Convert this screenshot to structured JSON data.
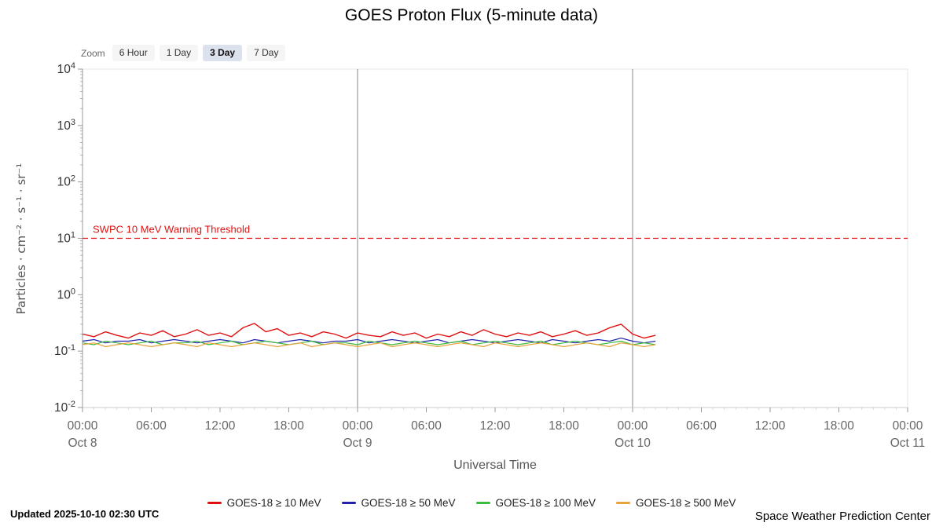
{
  "page": {
    "title": "GOES Proton Flux (5-minute data)",
    "updated": "Updated 2025-10-10 02:30 UTC",
    "credit": "Space Weather Prediction Center"
  },
  "zoom": {
    "label": "Zoom",
    "selected_index": 2,
    "buttons": [
      {
        "label": "6 Hour"
      },
      {
        "label": "1 Day"
      },
      {
        "label": "3 Day"
      },
      {
        "label": "7 Day"
      }
    ]
  },
  "chart_data": {
    "type": "line",
    "title": "GOES Proton Flux (5-minute data)",
    "xlabel": "Universal Time",
    "ylabel": "Particles · cm⁻² · s⁻¹ · sr⁻¹",
    "y_scale": "log",
    "ylim": [
      0.01,
      10000
    ],
    "y_tick_values": [
      10000,
      1000,
      100,
      10,
      1,
      0.1,
      0.01
    ],
    "y_tick_labels": [
      "10⁴",
      "10³",
      "10²",
      "10¹",
      "10⁰",
      "10⁻¹",
      "10⁻²"
    ],
    "x_unit": "hours since 2025-10-08 00:00 UTC",
    "x_range_hours": [
      0,
      72
    ],
    "x_major_ticks_hours": [
      0,
      6,
      12,
      18,
      24,
      30,
      36,
      42,
      48,
      54,
      60,
      66,
      72
    ],
    "x_tick_labels": [
      "00:00",
      "06:00",
      "12:00",
      "18:00",
      "00:00",
      "06:00",
      "12:00",
      "18:00",
      "00:00",
      "06:00",
      "12:00",
      "18:00",
      "00:00"
    ],
    "x_day_labels": [
      {
        "hour": 0,
        "label": "Oct 8"
      },
      {
        "hour": 24,
        "label": "Oct 9"
      },
      {
        "hour": 48,
        "label": "Oct 10"
      },
      {
        "hour": 72,
        "label": "Oct 11"
      }
    ],
    "x_day_gridline_hours": [
      24,
      48
    ],
    "threshold": {
      "value": 10,
      "label": "SWPC 10 MeV Warning Threshold",
      "color": "#e01010"
    },
    "legend_position": "bottom",
    "grid": "day-boundaries-only",
    "x_hours": [
      0,
      1,
      2,
      3,
      4,
      5,
      6,
      7,
      8,
      9,
      10,
      11,
      12,
      13,
      14,
      15,
      16,
      17,
      18,
      19,
      20,
      21,
      22,
      23,
      24,
      25,
      26,
      27,
      28,
      29,
      30,
      31,
      32,
      33,
      34,
      35,
      36,
      37,
      38,
      39,
      40,
      41,
      42,
      43,
      44,
      45,
      46,
      47,
      48,
      49,
      50
    ],
    "series": [
      {
        "name": "GOES-18 ≥ 10 MeV",
        "color": "#e01010",
        "values": [
          0.2,
          0.18,
          0.22,
          0.19,
          0.17,
          0.21,
          0.19,
          0.23,
          0.18,
          0.2,
          0.24,
          0.19,
          0.21,
          0.18,
          0.26,
          0.31,
          0.22,
          0.25,
          0.19,
          0.21,
          0.18,
          0.22,
          0.2,
          0.17,
          0.21,
          0.19,
          0.18,
          0.22,
          0.19,
          0.21,
          0.17,
          0.2,
          0.18,
          0.22,
          0.19,
          0.24,
          0.2,
          0.18,
          0.21,
          0.19,
          0.22,
          0.18,
          0.2,
          0.23,
          0.19,
          0.21,
          0.26,
          0.3,
          0.2,
          0.17,
          0.19
        ]
      },
      {
        "name": "GOES-18 ≥ 50 MeV",
        "color": "#2222aa",
        "values": [
          0.15,
          0.16,
          0.14,
          0.15,
          0.15,
          0.16,
          0.14,
          0.15,
          0.16,
          0.15,
          0.14,
          0.15,
          0.16,
          0.15,
          0.14,
          0.16,
          0.15,
          0.14,
          0.15,
          0.16,
          0.15,
          0.14,
          0.15,
          0.15,
          0.16,
          0.14,
          0.15,
          0.16,
          0.15,
          0.14,
          0.15,
          0.16,
          0.14,
          0.15,
          0.16,
          0.15,
          0.14,
          0.15,
          0.16,
          0.15,
          0.14,
          0.16,
          0.15,
          0.14,
          0.15,
          0.16,
          0.15,
          0.17,
          0.15,
          0.14,
          0.15
        ]
      },
      {
        "name": "GOES-18 ≥ 100 MeV",
        "color": "#3dbb3d",
        "values": [
          0.14,
          0.13,
          0.15,
          0.14,
          0.13,
          0.14,
          0.15,
          0.13,
          0.14,
          0.14,
          0.15,
          0.13,
          0.14,
          0.15,
          0.13,
          0.14,
          0.15,
          0.14,
          0.13,
          0.14,
          0.15,
          0.13,
          0.14,
          0.14,
          0.13,
          0.15,
          0.14,
          0.13,
          0.14,
          0.15,
          0.14,
          0.13,
          0.14,
          0.15,
          0.13,
          0.14,
          0.15,
          0.14,
          0.13,
          0.14,
          0.15,
          0.13,
          0.14,
          0.15,
          0.14,
          0.13,
          0.14,
          0.15,
          0.13,
          0.14,
          0.13
        ]
      },
      {
        "name": "GOES-18 ≥ 500 MeV",
        "color": "#e8a33d",
        "values": [
          0.13,
          0.14,
          0.12,
          0.13,
          0.14,
          0.13,
          0.12,
          0.13,
          0.14,
          0.13,
          0.12,
          0.14,
          0.13,
          0.12,
          0.13,
          0.14,
          0.13,
          0.12,
          0.13,
          0.14,
          0.12,
          0.13,
          0.14,
          0.13,
          0.12,
          0.13,
          0.14,
          0.12,
          0.13,
          0.14,
          0.13,
          0.12,
          0.13,
          0.14,
          0.13,
          0.12,
          0.14,
          0.13,
          0.12,
          0.13,
          0.14,
          0.13,
          0.12,
          0.13,
          0.14,
          0.13,
          0.12,
          0.14,
          0.13,
          0.12,
          0.13
        ]
      }
    ]
  }
}
